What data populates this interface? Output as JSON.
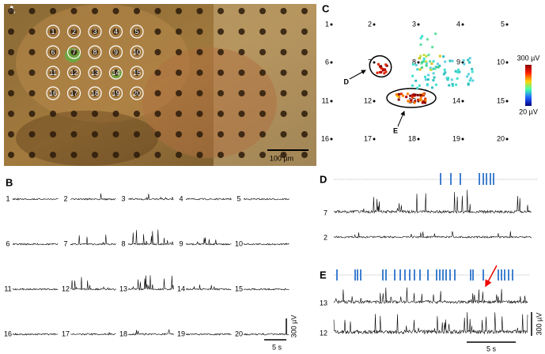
{
  "panels": {
    "A": {
      "label": "A",
      "electrodes": [
        "1",
        "2",
        "3",
        "4",
        "5",
        "6",
        "7",
        "8",
        "9",
        "10",
        "11",
        "12",
        "13",
        "14",
        "15",
        "16",
        "17",
        "18",
        "19",
        "20"
      ],
      "scale_bar": "100 µm"
    },
    "B": {
      "label": "B",
      "traces": [
        "1",
        "2",
        "3",
        "4",
        "5",
        "6",
        "7",
        "8",
        "9",
        "10",
        "11",
        "12",
        "13",
        "14",
        "15",
        "16",
        "17",
        "18",
        "19",
        "20"
      ],
      "scale_v": "300 µV",
      "scale_t": "5 s"
    },
    "C": {
      "label": "C",
      "electrodes": [
        "1",
        "2",
        "3",
        "4",
        "5",
        "6",
        "7",
        "8",
        "9",
        "10",
        "11",
        "12",
        "13",
        "14",
        "15",
        "16",
        "17",
        "18",
        "19",
        "20"
      ],
      "callouts": [
        "D",
        "E"
      ],
      "colorbar_max": "300 µV",
      "colorbar_min": "20 µV"
    },
    "D": {
      "label": "D",
      "traces": [
        "7",
        "2"
      ]
    },
    "E": {
      "label": "E",
      "traces": [
        "13",
        "12"
      ],
      "scale_v": "300 µV",
      "scale_t": "5 s"
    }
  }
}
